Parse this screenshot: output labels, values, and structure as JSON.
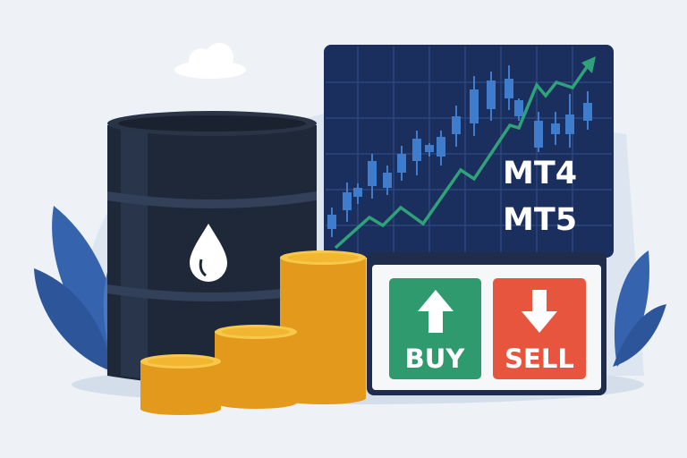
{
  "chart_panel": {
    "platforms": [
      "MT4",
      "MT5"
    ]
  },
  "trade_panel": {
    "buy_label": "BUY",
    "sell_label": "SELL"
  },
  "icons": {
    "barrel": "oil-barrel-icon",
    "drop": "oil-drop-icon",
    "buy_arrow": "arrow-up-icon",
    "sell_arrow": "arrow-down-icon"
  },
  "colors": {
    "background": "#eef2f6",
    "panel": "#1b2f5e",
    "candle": "#3f7ccc",
    "trend_line": "#2fa27a",
    "buy": "#2e9a6e",
    "sell": "#e8553e",
    "barrel": "#1f2838",
    "coin": "#f2b630",
    "leaf": "#3563ad"
  }
}
